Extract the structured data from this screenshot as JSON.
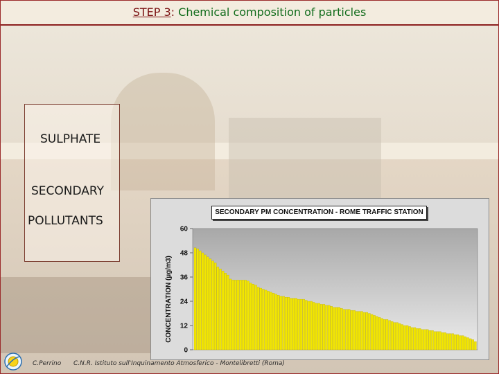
{
  "slide": {
    "title_step": "STEP 3",
    "title_sep": ":",
    "title_rest": "Chemical composition of particles"
  },
  "textbox": {
    "line1": "SULPHATE",
    "line2": "SECONDARY",
    "line3": "POLLUTANTS"
  },
  "footer": {
    "author": "C.Perrino",
    "institution": "C.N.R. Istituto sull'Inquinamento Atmosferico - Montelibretti (Roma)"
  },
  "colors": {
    "title_step": "#7a1010",
    "title_rest": "#0f6b1a",
    "bar_fill": "#f2e600",
    "bar_stroke": "#b8a800",
    "plot_bg_top": "#a8a8a8",
    "plot_bg_bottom": "#ececec",
    "rule": "#8b1e1e"
  },
  "chart_data": {
    "type": "bar",
    "title": "SECONDARY PM CONCENTRATION - ROME TRAFFIC STATION",
    "xlabel": "",
    "ylabel": "CONCENTRATION (µg/m3)",
    "ylim": [
      0,
      60
    ],
    "yticks": [
      0,
      12,
      24,
      36,
      48,
      60
    ],
    "grid": false,
    "sorted": "descending",
    "values": [
      50.5,
      50,
      49,
      48,
      47,
      46,
      45,
      44,
      43,
      41,
      40,
      39,
      38,
      37,
      35,
      34.5,
      34.5,
      34.5,
      34.5,
      34.5,
      34.5,
      34,
      33,
      32.5,
      32,
      31,
      30.5,
      30,
      29.5,
      29,
      28.5,
      28,
      27.5,
      27,
      26.5,
      26.5,
      26,
      26,
      25.5,
      25.5,
      25.5,
      25,
      25,
      25,
      24.5,
      24,
      24,
      23.5,
      23,
      23,
      22.5,
      22.5,
      22,
      22,
      21.5,
      21,
      21,
      21,
      20.5,
      20,
      20,
      20,
      19.5,
      19.5,
      19,
      19,
      19,
      18.5,
      18.5,
      18,
      17.5,
      17,
      16.5,
      16,
      15.5,
      15,
      15,
      14.5,
      14,
      13.5,
      13.5,
      13,
      12.5,
      12,
      12,
      11.5,
      11,
      11,
      10.5,
      10.5,
      10,
      10,
      10,
      9.5,
      9.5,
      9,
      9,
      9,
      8.5,
      8.5,
      8,
      8,
      8,
      7.5,
      7.5,
      7,
      7,
      6.5,
      6,
      5.5,
      5,
      4
    ]
  }
}
